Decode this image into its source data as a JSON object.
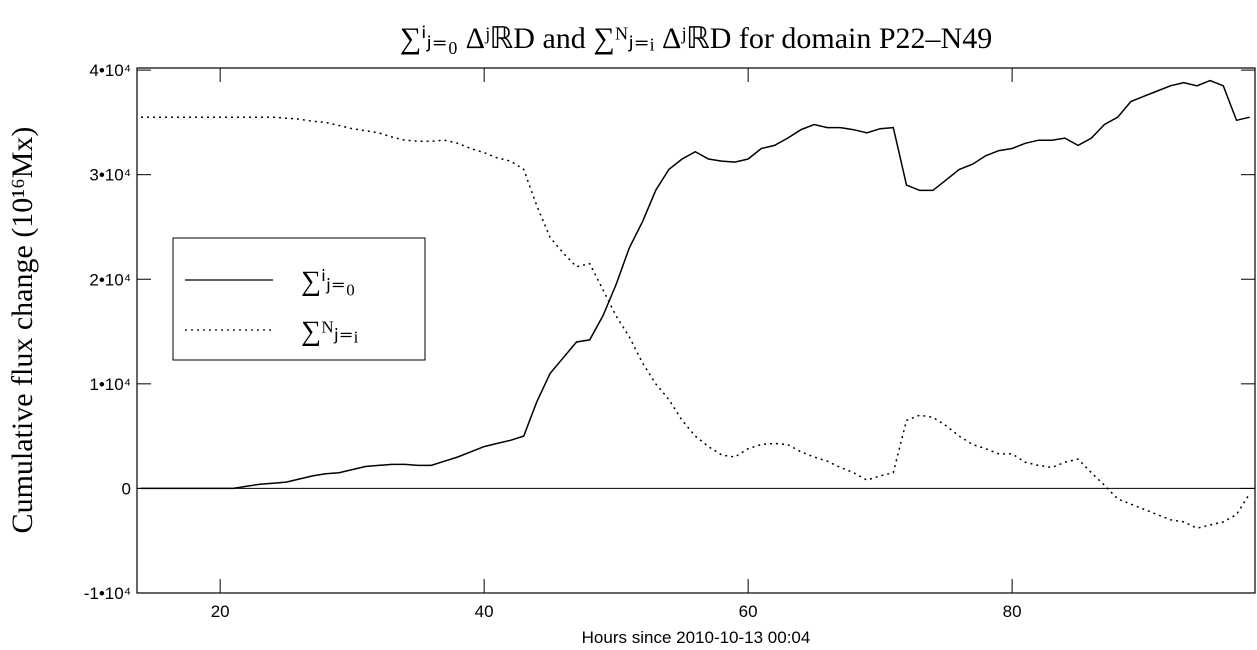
{
  "chart_data": {
    "type": "line",
    "title": "∑ⁱⱼ₌₀ ΔʲℝD and ∑ᴺⱼ₌ᵢ ΔʲℝD for domain P22–N49",
    "x_label": "Hours since 2010-10-13 00:04",
    "y_label": "Cumulative flux change (10¹⁶Mx)",
    "x": [
      14,
      15,
      16,
      17,
      18,
      19,
      20,
      21,
      22,
      23,
      24,
      25,
      26,
      27,
      28,
      29,
      30,
      31,
      32,
      33,
      34,
      35,
      36,
      37,
      38,
      39,
      40,
      41,
      42,
      43,
      44,
      45,
      46,
      47,
      48,
      49,
      50,
      51,
      52,
      53,
      54,
      55,
      56,
      57,
      58,
      59,
      60,
      61,
      62,
      63,
      64,
      65,
      66,
      67,
      68,
      69,
      70,
      71,
      72,
      73,
      74,
      75,
      76,
      77,
      78,
      79,
      80,
      81,
      82,
      83,
      84,
      85,
      86,
      87,
      88,
      89,
      90,
      91,
      92,
      93,
      94,
      95,
      96,
      97,
      98
    ],
    "series": [
      {
        "name": "∑ⁱⱼ₌₀",
        "color": "#000000",
        "dash": "solid",
        "values": [
          0,
          0,
          0,
          0,
          0,
          0,
          0,
          0,
          200,
          400,
          500,
          600,
          900,
          1200,
          1400,
          1500,
          1800,
          2100,
          2200,
          2300,
          2300,
          2200,
          2200,
          2600,
          3000,
          3500,
          4000,
          4300,
          4600,
          5000,
          8300,
          11000,
          12500,
          14000,
          14200,
          16500,
          19500,
          23000,
          25500,
          28500,
          30500,
          31500,
          32200,
          31500,
          31300,
          31200,
          31500,
          32500,
          32800,
          33500,
          34300,
          34800,
          34500,
          34500,
          34300,
          34000,
          34400,
          34500,
          29000,
          28500,
          28500,
          29500,
          30500,
          31000,
          31800,
          32300,
          32500,
          33000,
          33300,
          33300,
          33500,
          32800,
          33500,
          34800,
          35500,
          37000,
          37500,
          38000,
          38500,
          38800,
          38500,
          39000,
          38500,
          35200,
          35500
        ]
      },
      {
        "name": "∑ᴺⱼ₌ᵢ",
        "color": "#000000",
        "dash": "dotted",
        "values": [
          35500,
          35500,
          35500,
          35500,
          35500,
          35500,
          35500,
          35500,
          35500,
          35500,
          35500,
          35400,
          35300,
          35100,
          35000,
          34700,
          34400,
          34200,
          34000,
          33600,
          33300,
          33200,
          33200,
          33300,
          33000,
          32500,
          32100,
          31600,
          31300,
          30500,
          27000,
          24000,
          22500,
          21200,
          21500,
          19000,
          16500,
          14500,
          12000,
          10000,
          8500,
          6500,
          5000,
          4000,
          3200,
          3000,
          3800,
          4200,
          4300,
          4200,
          3500,
          3000,
          2600,
          2000,
          1500,
          800,
          1200,
          1500,
          6500,
          7000,
          6800,
          6000,
          5000,
          4200,
          3800,
          3300,
          3300,
          2500,
          2200,
          2000,
          2500,
          2800,
          1500,
          300,
          -1000,
          -1500,
          -2000,
          -2500,
          -3000,
          -3200,
          -3800,
          -3500,
          -3200,
          -2500,
          -500
        ]
      }
    ],
    "xlim": [
      13.7,
      98.4
    ],
    "ylim": [
      -10000,
      40200
    ],
    "xticks": [
      20,
      40,
      60,
      80
    ],
    "yticks": [
      {
        "value": -10000,
        "label": "-1•10⁴"
      },
      0,
      {
        "value": 10000,
        "label": "1•10⁴"
      },
      {
        "value": 20000,
        "label": "2•10⁴"
      },
      {
        "value": 30000,
        "label": "3•10⁴"
      },
      {
        "value": 40000,
        "label": "4•10⁴"
      }
    ],
    "zero_line": true,
    "legend_position": "center left"
  }
}
